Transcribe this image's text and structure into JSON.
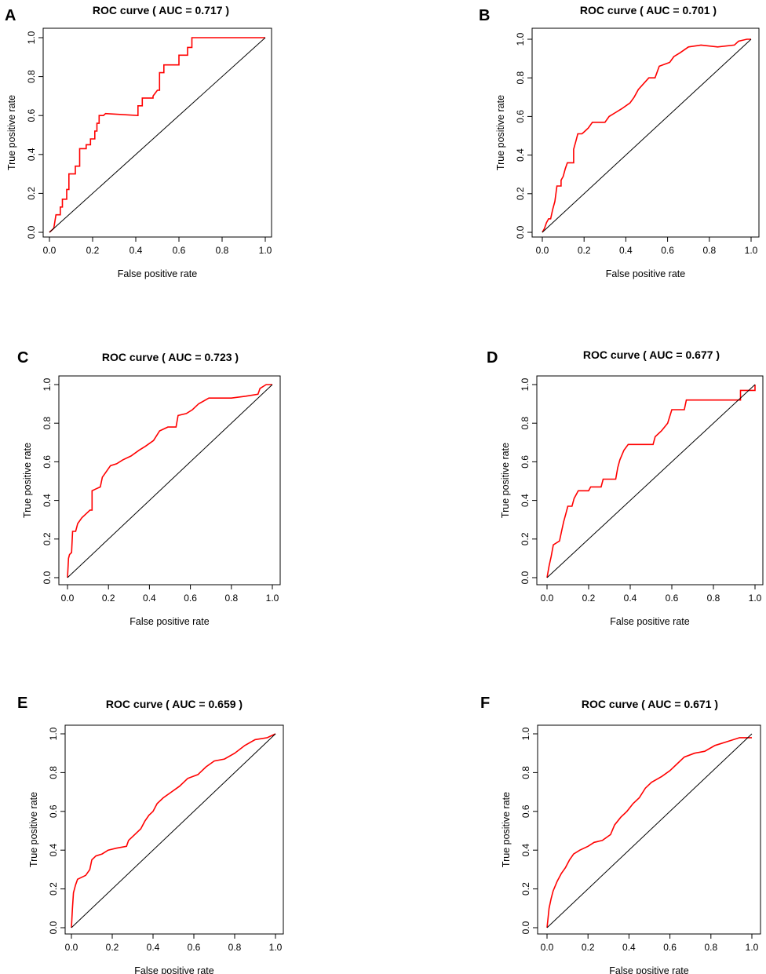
{
  "chart_data": [
    {
      "type": "line",
      "panel": "A",
      "title": "ROC curve ( AUC =  0.717 )",
      "xlabel": "False positive rate",
      "ylabel": "True positive rate",
      "xlim": [
        0,
        1
      ],
      "ylim": [
        0,
        1
      ],
      "ticks": [
        "0.0",
        "0.2",
        "0.4",
        "0.6",
        "0.8",
        "1.0"
      ],
      "series": [
        {
          "name": "ROC",
          "color": "#ff0000",
          "points": [
            [
              0,
              0
            ],
            [
              0.02,
              0.02
            ],
            [
              0.03,
              0.09
            ],
            [
              0.05,
              0.09
            ],
            [
              0.05,
              0.13
            ],
            [
              0.06,
              0.13
            ],
            [
              0.06,
              0.17
            ],
            [
              0.08,
              0.17
            ],
            [
              0.08,
              0.22
            ],
            [
              0.09,
              0.22
            ],
            [
              0.09,
              0.3
            ],
            [
              0.12,
              0.3
            ],
            [
              0.12,
              0.34
            ],
            [
              0.14,
              0.34
            ],
            [
              0.14,
              0.43
            ],
            [
              0.17,
              0.43
            ],
            [
              0.17,
              0.45
            ],
            [
              0.19,
              0.45
            ],
            [
              0.19,
              0.48
            ],
            [
              0.21,
              0.48
            ],
            [
              0.21,
              0.52
            ],
            [
              0.22,
              0.52
            ],
            [
              0.22,
              0.56
            ],
            [
              0.23,
              0.56
            ],
            [
              0.23,
              0.6
            ],
            [
              0.25,
              0.6
            ],
            [
              0.26,
              0.61
            ],
            [
              0.41,
              0.6
            ],
            [
              0.41,
              0.65
            ],
            [
              0.43,
              0.65
            ],
            [
              0.43,
              0.69
            ],
            [
              0.48,
              0.69
            ],
            [
              0.48,
              0.7
            ],
            [
              0.5,
              0.73
            ],
            [
              0.51,
              0.73
            ],
            [
              0.51,
              0.82
            ],
            [
              0.53,
              0.82
            ],
            [
              0.53,
              0.86
            ],
            [
              0.6,
              0.86
            ],
            [
              0.6,
              0.91
            ],
            [
              0.64,
              0.91
            ],
            [
              0.64,
              0.95
            ],
            [
              0.66,
              0.95
            ],
            [
              0.66,
              1.0
            ],
            [
              0.8,
              1.0
            ],
            [
              0.98,
              1.0
            ],
            [
              1.0,
              1.0
            ]
          ]
        },
        {
          "name": "reference",
          "color": "#000000",
          "points": [
            [
              0,
              0
            ],
            [
              1,
              1
            ]
          ]
        }
      ]
    },
    {
      "type": "line",
      "panel": "B",
      "title": "ROC curve ( AUC =  0.701 )",
      "xlabel": "False positive rate",
      "ylabel": "True positive rate",
      "xlim": [
        0,
        1
      ],
      "ylim": [
        0,
        1
      ],
      "ticks": [
        "0.0",
        "0.2",
        "0.4",
        "0.6",
        "0.8",
        "1.0"
      ],
      "series": [
        {
          "name": "ROC",
          "color": "#ff0000",
          "points": [
            [
              0,
              0
            ],
            [
              0.01,
              0.02
            ],
            [
              0.02,
              0.05
            ],
            [
              0.03,
              0.07
            ],
            [
              0.04,
              0.07
            ],
            [
              0.05,
              0.12
            ],
            [
              0.06,
              0.16
            ],
            [
              0.07,
              0.24
            ],
            [
              0.09,
              0.24
            ],
            [
              0.09,
              0.27
            ],
            [
              0.1,
              0.29
            ],
            [
              0.11,
              0.33
            ],
            [
              0.12,
              0.36
            ],
            [
              0.15,
              0.36
            ],
            [
              0.15,
              0.43
            ],
            [
              0.16,
              0.47
            ],
            [
              0.17,
              0.51
            ],
            [
              0.19,
              0.51
            ],
            [
              0.2,
              0.52
            ],
            [
              0.22,
              0.54
            ],
            [
              0.24,
              0.57
            ],
            [
              0.3,
              0.57
            ],
            [
              0.32,
              0.6
            ],
            [
              0.35,
              0.62
            ],
            [
              0.38,
              0.64
            ],
            [
              0.42,
              0.67
            ],
            [
              0.44,
              0.7
            ],
            [
              0.46,
              0.74
            ],
            [
              0.51,
              0.8
            ],
            [
              0.54,
              0.8
            ],
            [
              0.56,
              0.86
            ],
            [
              0.61,
              0.88
            ],
            [
              0.63,
              0.91
            ],
            [
              0.66,
              0.93
            ],
            [
              0.7,
              0.96
            ],
            [
              0.76,
              0.97
            ],
            [
              0.84,
              0.96
            ],
            [
              0.92,
              0.97
            ],
            [
              0.94,
              0.99
            ],
            [
              0.98,
              1.0
            ],
            [
              1.0,
              1.0
            ]
          ]
        },
        {
          "name": "reference",
          "color": "#000000",
          "points": [
            [
              0,
              0
            ],
            [
              1,
              1
            ]
          ]
        }
      ]
    },
    {
      "type": "line",
      "panel": "C",
      "title": "ROC curve ( AUC =  0.723 )",
      "xlabel": "False positive rate",
      "ylabel": "True positive rate",
      "xlim": [
        0,
        1
      ],
      "ylim": [
        0,
        1
      ],
      "ticks": [
        "0.0",
        "0.2",
        "0.4",
        "0.6",
        "0.8",
        "1.0"
      ],
      "series": [
        {
          "name": "ROC",
          "color": "#ff0000",
          "points": [
            [
              0,
              0
            ],
            [
              0.005,
              0.1
            ],
            [
              0.01,
              0.12
            ],
            [
              0.02,
              0.13
            ],
            [
              0.025,
              0.24
            ],
            [
              0.04,
              0.24
            ],
            [
              0.05,
              0.28
            ],
            [
              0.07,
              0.31
            ],
            [
              0.09,
              0.33
            ],
            [
              0.11,
              0.35
            ],
            [
              0.12,
              0.35
            ],
            [
              0.12,
              0.45
            ],
            [
              0.14,
              0.46
            ],
            [
              0.16,
              0.47
            ],
            [
              0.17,
              0.52
            ],
            [
              0.19,
              0.55
            ],
            [
              0.21,
              0.58
            ],
            [
              0.24,
              0.59
            ],
            [
              0.27,
              0.61
            ],
            [
              0.31,
              0.63
            ],
            [
              0.35,
              0.66
            ],
            [
              0.38,
              0.68
            ],
            [
              0.42,
              0.71
            ],
            [
              0.45,
              0.76
            ],
            [
              0.49,
              0.78
            ],
            [
              0.53,
              0.78
            ],
            [
              0.54,
              0.84
            ],
            [
              0.58,
              0.85
            ],
            [
              0.61,
              0.87
            ],
            [
              0.64,
              0.9
            ],
            [
              0.69,
              0.93
            ],
            [
              0.8,
              0.93
            ],
            [
              0.87,
              0.94
            ],
            [
              0.93,
              0.95
            ],
            [
              0.94,
              0.98
            ],
            [
              0.97,
              1.0
            ],
            [
              1.0,
              1.0
            ]
          ]
        },
        {
          "name": "reference",
          "color": "#000000",
          "points": [
            [
              0,
              0
            ],
            [
              1,
              1
            ]
          ]
        }
      ]
    },
    {
      "type": "line",
      "panel": "D",
      "title": "ROC curve ( AUC =  0.677 )",
      "xlabel": "False positive rate",
      "ylabel": "True positive rate",
      "xlim": [
        0,
        1
      ],
      "ylim": [
        0,
        1
      ],
      "ticks": [
        "0.0",
        "0.2",
        "0.4",
        "0.6",
        "0.8",
        "1.0"
      ],
      "series": [
        {
          "name": "ROC",
          "color": "#ff0000",
          "points": [
            [
              0,
              0
            ],
            [
              0.01,
              0.06
            ],
            [
              0.02,
              0.11
            ],
            [
              0.03,
              0.17
            ],
            [
              0.06,
              0.19
            ],
            [
              0.07,
              0.24
            ],
            [
              0.08,
              0.29
            ],
            [
              0.09,
              0.33
            ],
            [
              0.1,
              0.37
            ],
            [
              0.12,
              0.37
            ],
            [
              0.13,
              0.41
            ],
            [
              0.15,
              0.45
            ],
            [
              0.2,
              0.45
            ],
            [
              0.21,
              0.47
            ],
            [
              0.26,
              0.47
            ],
            [
              0.27,
              0.51
            ],
            [
              0.33,
              0.51
            ],
            [
              0.34,
              0.57
            ],
            [
              0.35,
              0.61
            ],
            [
              0.37,
              0.66
            ],
            [
              0.39,
              0.69
            ],
            [
              0.51,
              0.69
            ],
            [
              0.52,
              0.73
            ],
            [
              0.55,
              0.76
            ],
            [
              0.58,
              0.8
            ],
            [
              0.6,
              0.87
            ],
            [
              0.66,
              0.87
            ],
            [
              0.67,
              0.92
            ],
            [
              0.85,
              0.92
            ],
            [
              0.93,
              0.92
            ],
            [
              0.93,
              0.97
            ],
            [
              1.0,
              0.97
            ],
            [
              1.0,
              1.0
            ]
          ]
        },
        {
          "name": "reference",
          "color": "#000000",
          "points": [
            [
              0,
              0
            ],
            [
              1,
              1
            ]
          ]
        }
      ]
    },
    {
      "type": "line",
      "panel": "E",
      "title": "ROC curve ( AUC =  0.659 )",
      "xlabel": "False positive rate",
      "ylabel": "True positive rate",
      "xlim": [
        0,
        1
      ],
      "ylim": [
        0,
        1
      ],
      "ticks": [
        "0.0",
        "0.2",
        "0.4",
        "0.6",
        "0.8",
        "1.0"
      ],
      "series": [
        {
          "name": "ROC",
          "color": "#ff0000",
          "points": [
            [
              0,
              0
            ],
            [
              0.005,
              0.1
            ],
            [
              0.01,
              0.18
            ],
            [
              0.02,
              0.22
            ],
            [
              0.03,
              0.25
            ],
            [
              0.05,
              0.26
            ],
            [
              0.07,
              0.27
            ],
            [
              0.09,
              0.3
            ],
            [
              0.1,
              0.35
            ],
            [
              0.12,
              0.37
            ],
            [
              0.15,
              0.38
            ],
            [
              0.18,
              0.4
            ],
            [
              0.22,
              0.41
            ],
            [
              0.27,
              0.42
            ],
            [
              0.28,
              0.45
            ],
            [
              0.31,
              0.48
            ],
            [
              0.34,
              0.51
            ],
            [
              0.36,
              0.55
            ],
            [
              0.38,
              0.58
            ],
            [
              0.4,
              0.6
            ],
            [
              0.42,
              0.64
            ],
            [
              0.45,
              0.67
            ],
            [
              0.49,
              0.7
            ],
            [
              0.53,
              0.73
            ],
            [
              0.57,
              0.77
            ],
            [
              0.62,
              0.79
            ],
            [
              0.66,
              0.83
            ],
            [
              0.7,
              0.86
            ],
            [
              0.75,
              0.87
            ],
            [
              0.8,
              0.9
            ],
            [
              0.85,
              0.94
            ],
            [
              0.9,
              0.97
            ],
            [
              0.96,
              0.98
            ],
            [
              1.0,
              1.0
            ]
          ]
        },
        {
          "name": "reference",
          "color": "#000000",
          "points": [
            [
              0,
              0
            ],
            [
              1,
              1
            ]
          ]
        }
      ]
    },
    {
      "type": "line",
      "panel": "F",
      "title": "ROC curve ( AUC =  0.671 )",
      "xlabel": "False positive rate",
      "ylabel": "True positive rate",
      "xlim": [
        0,
        1
      ],
      "ylim": [
        0,
        1
      ],
      "ticks": [
        "0.0",
        "0.2",
        "0.4",
        "0.6",
        "0.8",
        "1.0"
      ],
      "series": [
        {
          "name": "ROC",
          "color": "#ff0000",
          "points": [
            [
              0,
              0
            ],
            [
              0.005,
              0.05
            ],
            [
              0.01,
              0.1
            ],
            [
              0.02,
              0.15
            ],
            [
              0.03,
              0.19
            ],
            [
              0.05,
              0.24
            ],
            [
              0.07,
              0.28
            ],
            [
              0.09,
              0.31
            ],
            [
              0.11,
              0.35
            ],
            [
              0.13,
              0.38
            ],
            [
              0.16,
              0.4
            ],
            [
              0.2,
              0.42
            ],
            [
              0.23,
              0.44
            ],
            [
              0.27,
              0.45
            ],
            [
              0.31,
              0.48
            ],
            [
              0.33,
              0.53
            ],
            [
              0.36,
              0.57
            ],
            [
              0.39,
              0.6
            ],
            [
              0.42,
              0.64
            ],
            [
              0.45,
              0.67
            ],
            [
              0.48,
              0.72
            ],
            [
              0.51,
              0.75
            ],
            [
              0.56,
              0.78
            ],
            [
              0.6,
              0.81
            ],
            [
              0.63,
              0.84
            ],
            [
              0.67,
              0.88
            ],
            [
              0.72,
              0.9
            ],
            [
              0.77,
              0.91
            ],
            [
              0.82,
              0.94
            ],
            [
              0.88,
              0.96
            ],
            [
              0.94,
              0.98
            ],
            [
              1.0,
              0.98
            ]
          ]
        },
        {
          "name": "reference",
          "color": "#000000",
          "points": [
            [
              0,
              0
            ],
            [
              1,
              1
            ]
          ]
        }
      ]
    }
  ]
}
